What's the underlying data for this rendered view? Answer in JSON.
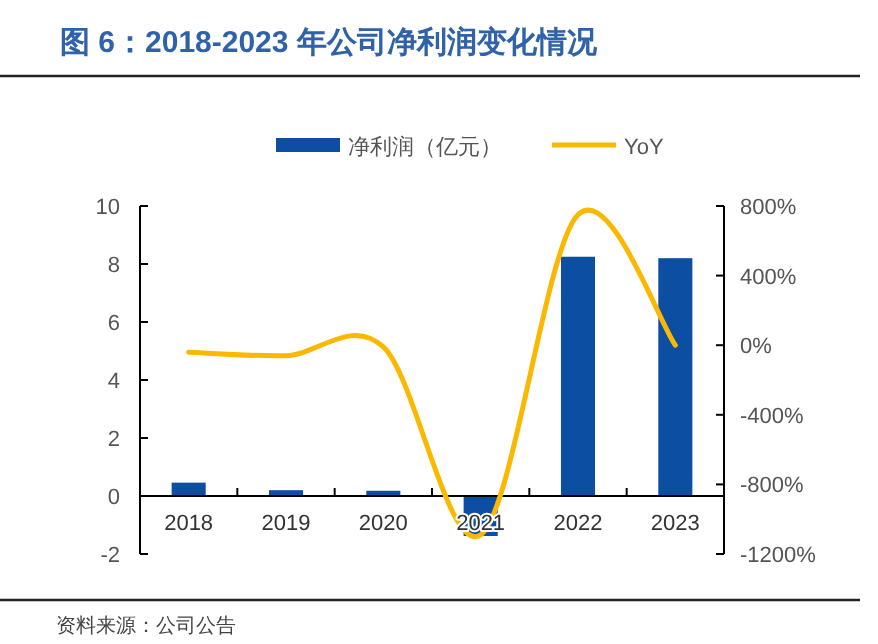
{
  "chart_data": {
    "type": "bar",
    "title": "图 6：2018-2023 年公司净利润变化情况",
    "categories": [
      "2018",
      "2019",
      "2020",
      "2021",
      "2022",
      "2023"
    ],
    "series": [
      {
        "name": "净利润（亿元）",
        "color": "#0b4ea2",
        "values": [
          0.46,
          0.2,
          0.18,
          -1.38,
          8.25,
          8.2
        ]
      },
      {
        "name": "YoY",
        "type": "line",
        "axis": "y2",
        "color": "#fbb800",
        "values": [
          -40,
          -60,
          -10,
          -1090,
          750,
          0
        ]
      }
    ],
    "ylim": [
      -2,
      10
    ],
    "yticks": [
      -2,
      0,
      2,
      4,
      6,
      8,
      10
    ],
    "y2lim": [
      -1200,
      800
    ],
    "y2ticks": [
      {
        "value": -1200,
        "label": "-1200%"
      },
      {
        "value": -800,
        "label": "-800%"
      },
      {
        "value": -400,
        "label": "-400%"
      },
      {
        "value": 0,
        "label": "0%"
      },
      {
        "value": 400,
        "label": "400%"
      },
      {
        "value": 800,
        "label": "800%"
      }
    ],
    "legend": "top",
    "grid": false,
    "annotations": [
      "资料来源：公司公告"
    ]
  }
}
